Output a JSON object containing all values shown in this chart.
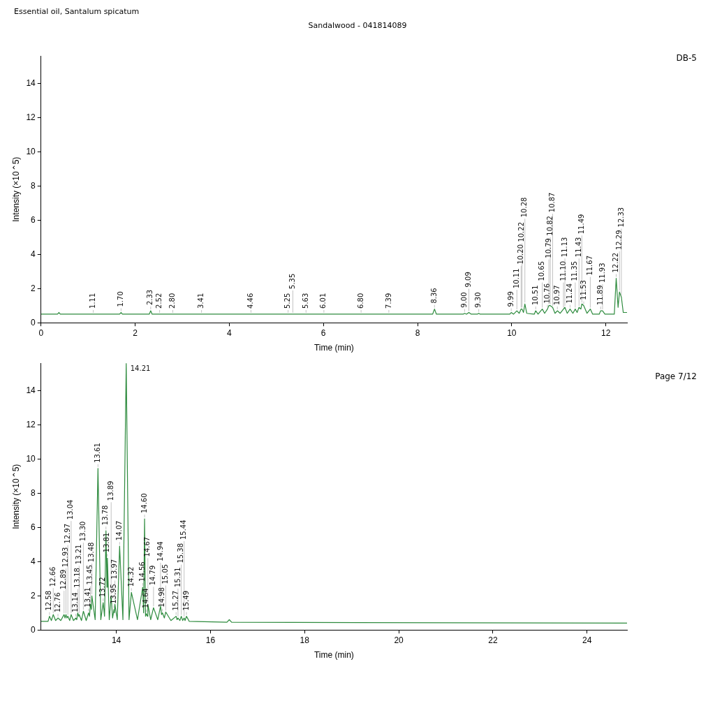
{
  "chart_data": [
    {
      "type": "line",
      "title": "Essential oil, Santalum spicatum",
      "subtitle": "Sandalwood - 041814089",
      "xlabel": "Time (min)",
      "ylabel": "Intensity (×10⌃5)",
      "xlim": [
        0,
        12.45
      ],
      "xticks": [
        0,
        2,
        4,
        6,
        8,
        10,
        12
      ],
      "ylim": [
        0,
        15.6
      ],
      "yticks": [
        0,
        2,
        4,
        6,
        8,
        10,
        12,
        14
      ],
      "grid": false,
      "legend": false,
      "marker": "none",
      "line_style": "solid",
      "series": [
        {
          "color": "#2e8b3e",
          "x": [
            0,
            0.35,
            0.38,
            0.41,
            1.67,
            1.7,
            1.73,
            2.3,
            2.33,
            2.36,
            8.32,
            8.36,
            8.4,
            8.97,
            9.0,
            9.04,
            9.09,
            9.14,
            9.27,
            9.3,
            9.33,
            9.96,
            9.99,
            10.04,
            10.11,
            10.16,
            10.2,
            10.22,
            10.25,
            10.28,
            10.32,
            10.48,
            10.51,
            10.56,
            10.65,
            10.7,
            10.76,
            10.79,
            10.82,
            10.87,
            10.92,
            10.97,
            11.03,
            11.1,
            11.13,
            11.18,
            11.24,
            11.3,
            11.35,
            11.39,
            11.43,
            11.47,
            11.49,
            11.53,
            11.6,
            11.67,
            11.72,
            11.86,
            11.89,
            11.93,
            11.98,
            12.18,
            12.22,
            12.26,
            12.29,
            12.33,
            12.37,
            12.45
          ],
          "values": [
            0.5,
            0.5,
            0.6,
            0.5,
            0.5,
            0.6,
            0.5,
            0.5,
            0.7,
            0.5,
            0.5,
            0.8,
            0.5,
            0.5,
            0.55,
            0.5,
            0.6,
            0.5,
            0.5,
            0.55,
            0.5,
            0.5,
            0.6,
            0.5,
            0.7,
            0.55,
            0.8,
            0.8,
            0.6,
            1.1,
            0.55,
            0.5,
            0.7,
            0.5,
            0.8,
            0.55,
            0.8,
            1.0,
            1.0,
            0.9,
            0.55,
            0.7,
            0.55,
            0.8,
            0.9,
            0.55,
            0.8,
            0.55,
            0.8,
            0.6,
            0.9,
            0.8,
            1.1,
            1.0,
            0.55,
            0.8,
            0.5,
            0.5,
            0.7,
            0.7,
            0.5,
            0.5,
            2.6,
            0.9,
            1.8,
            1.5,
            0.6,
            0.6
          ]
        }
      ],
      "annotations": [
        "DB-5",
        {
          "text": "1.11",
          "x": 1.11,
          "y": 0.5
        },
        {
          "text": "1.70",
          "x": 1.7,
          "y": 0.6
        },
        {
          "text": "2.33",
          "x": 2.33,
          "y": 0.7
        },
        {
          "text": "2.52",
          "x": 2.52,
          "y": 0.5
        },
        {
          "text": "2.80",
          "x": 2.8,
          "y": 0.5
        },
        {
          "text": "3.41",
          "x": 3.41,
          "y": 0.5
        },
        {
          "text": "4.46",
          "x": 4.46,
          "y": 0.5
        },
        {
          "text": "5.25",
          "x": 5.25,
          "y": 0.5
        },
        {
          "text": "5.35",
          "x": 5.35,
          "y": 0.5
        },
        {
          "text": "5.63",
          "x": 5.63,
          "y": 0.5
        },
        {
          "text": "6.01",
          "x": 6.01,
          "y": 0.5
        },
        {
          "text": "6.80",
          "x": 6.8,
          "y": 0.5
        },
        {
          "text": "7.39",
          "x": 7.39,
          "y": 0.5
        },
        {
          "text": "8.36",
          "x": 8.36,
          "y": 0.8
        },
        {
          "text": "9.00",
          "x": 9.0,
          "y": 0.55
        },
        {
          "text": "9.09",
          "x": 9.09,
          "y": 0.6
        },
        {
          "text": "9.30",
          "x": 9.3,
          "y": 0.55
        },
        {
          "text": "9.99",
          "x": 9.99,
          "y": 0.6
        },
        {
          "text": "10.11",
          "x": 10.11,
          "y": 0.7
        },
        {
          "text": "10.20",
          "x": 10.2,
          "y": 0.8
        },
        {
          "text": "10.22",
          "x": 10.22,
          "y": 0.8
        },
        {
          "text": "10.28",
          "x": 10.28,
          "y": 1.1
        },
        {
          "text": "10.51",
          "x": 10.51,
          "y": 0.7
        },
        {
          "text": "10.65",
          "x": 10.65,
          "y": 0.8
        },
        {
          "text": "10.76",
          "x": 10.76,
          "y": 0.8
        },
        {
          "text": "10.79",
          "x": 10.79,
          "y": 1.0
        },
        {
          "text": "10.82",
          "x": 10.82,
          "y": 1.0
        },
        {
          "text": "10.87",
          "x": 10.87,
          "y": 0.9
        },
        {
          "text": "10.97",
          "x": 10.97,
          "y": 0.7
        },
        {
          "text": "11.10",
          "x": 11.1,
          "y": 0.8
        },
        {
          "text": "11.13",
          "x": 11.13,
          "y": 0.9
        },
        {
          "text": "11.24",
          "x": 11.24,
          "y": 0.8
        },
        {
          "text": "11.35",
          "x": 11.35,
          "y": 0.8
        },
        {
          "text": "11.43",
          "x": 11.43,
          "y": 0.9
        },
        {
          "text": "11.49",
          "x": 11.49,
          "y": 1.1
        },
        {
          "text": "11.53",
          "x": 11.53,
          "y": 1.0
        },
        {
          "text": "11.67",
          "x": 11.67,
          "y": 0.8
        },
        {
          "text": "11.89",
          "x": 11.89,
          "y": 0.7
        },
        {
          "text": "11.93",
          "x": 11.93,
          "y": 0.7
        },
        {
          "text": "12.22",
          "x": 12.22,
          "y": 2.6
        },
        {
          "text": "12.29",
          "x": 12.29,
          "y": 1.8
        },
        {
          "text": "12.33",
          "x": 12.33,
          "y": 1.5
        }
      ]
    },
    {
      "type": "line",
      "xlabel": "Time (min)",
      "ylabel": "Intensity (×10⌃5)",
      "xlim": [
        12.4,
        24.85
      ],
      "xticks": [
        14,
        16,
        18,
        20,
        22,
        24
      ],
      "ylim": [
        0,
        15.6
      ],
      "yticks": [
        0,
        2,
        4,
        6,
        8,
        10,
        12,
        14
      ],
      "grid": false,
      "legend": false,
      "marker": "none",
      "line_style": "solid",
      "series": [
        {
          "color": "#2e8b3e",
          "x": [
            12.4,
            12.55,
            12.58,
            12.62,
            12.66,
            12.71,
            12.76,
            12.82,
            12.89,
            12.91,
            12.93,
            12.95,
            12.97,
            13.01,
            13.04,
            13.09,
            13.14,
            13.16,
            13.18,
            13.2,
            13.21,
            13.26,
            13.3,
            13.36,
            13.41,
            13.43,
            13.45,
            13.47,
            13.48,
            13.55,
            13.61,
            13.67,
            13.72,
            13.75,
            13.78,
            13.8,
            13.81,
            13.85,
            13.89,
            13.92,
            13.95,
            13.96,
            13.97,
            14.02,
            14.07,
            14.14,
            14.21,
            14.27,
            14.32,
            14.45,
            14.56,
            14.58,
            14.6,
            14.62,
            14.64,
            14.66,
            14.67,
            14.73,
            14.79,
            14.88,
            14.94,
            14.96,
            14.98,
            15.02,
            15.05,
            15.16,
            15.27,
            15.29,
            15.31,
            15.35,
            15.38,
            15.41,
            15.44,
            15.46,
            15.49,
            15.55,
            16.35,
            16.4,
            16.45,
            24.85
          ],
          "values": [
            0.5,
            0.5,
            0.8,
            0.55,
            0.9,
            0.55,
            0.7,
            0.55,
            0.9,
            0.7,
            0.9,
            0.7,
            0.8,
            0.55,
            0.9,
            0.55,
            0.7,
            0.6,
            1.0,
            0.8,
            0.9,
            0.55,
            1.1,
            0.55,
            1.0,
            0.8,
            1.5,
            1.2,
            2.0,
            0.6,
            9.45,
            0.6,
            1.6,
            0.8,
            5.8,
            2.5,
            4.2,
            0.6,
            2.0,
            0.7,
            1.2,
            1.0,
            1.5,
            0.6,
            4.9,
            0.6,
            15.6,
            0.6,
            2.2,
            0.6,
            2.5,
            1.0,
            6.5,
            0.8,
            0.95,
            0.8,
            1.5,
            0.6,
            1.3,
            0.6,
            1.4,
            0.9,
            1.0,
            0.7,
            1.05,
            0.55,
            0.8,
            0.6,
            0.7,
            0.55,
            0.8,
            0.55,
            0.7,
            0.55,
            0.8,
            0.5,
            0.45,
            0.6,
            0.45,
            0.4
          ]
        }
      ],
      "annotations": [
        "Page 7/12",
        {
          "text": "12.58",
          "x": 12.58,
          "y": 0.8
        },
        {
          "text": "12.66",
          "x": 12.66,
          "y": 0.9
        },
        {
          "text": "12.76",
          "x": 12.76,
          "y": 0.7
        },
        {
          "text": "12.89",
          "x": 12.89,
          "y": 0.9
        },
        {
          "text": "12.93",
          "x": 12.93,
          "y": 0.9
        },
        {
          "text": "12.97",
          "x": 12.97,
          "y": 0.8
        },
        {
          "text": "13.04",
          "x": 13.04,
          "y": 0.9
        },
        {
          "text": "13.14",
          "x": 13.14,
          "y": 0.7
        },
        {
          "text": "13.18",
          "x": 13.18,
          "y": 1.0
        },
        {
          "text": "13.21",
          "x": 13.21,
          "y": 0.9
        },
        {
          "text": "13.30",
          "x": 13.3,
          "y": 1.1
        },
        {
          "text": "13.41",
          "x": 13.41,
          "y": 1.0
        },
        {
          "text": "13.45",
          "x": 13.45,
          "y": 1.5
        },
        {
          "text": "13.48",
          "x": 13.48,
          "y": 2.0
        },
        {
          "text": "13.61",
          "x": 13.61,
          "y": 9.45
        },
        {
          "text": "13.72",
          "x": 13.72,
          "y": 1.6
        },
        {
          "text": "13.78",
          "x": 13.78,
          "y": 5.8
        },
        {
          "text": "13.81",
          "x": 13.81,
          "y": 4.2
        },
        {
          "text": "13.89",
          "x": 13.89,
          "y": 2.0
        },
        {
          "text": "13.95",
          "x": 13.95,
          "y": 1.2
        },
        {
          "text": "13.97",
          "x": 13.97,
          "y": 1.5
        },
        {
          "text": "14.07",
          "x": 14.07,
          "y": 4.9
        },
        {
          "text": "14.21",
          "x": 14.21,
          "y": 15.6
        },
        {
          "text": "14.32",
          "x": 14.32,
          "y": 2.2
        },
        {
          "text": "14.56",
          "x": 14.56,
          "y": 2.5
        },
        {
          "text": "14.60",
          "x": 14.6,
          "y": 6.5
        },
        {
          "text": "14.64",
          "x": 14.64,
          "y": 0.95
        },
        {
          "text": "14.67",
          "x": 14.67,
          "y": 1.5
        },
        {
          "text": "14.79",
          "x": 14.79,
          "y": 1.3
        },
        {
          "text": "14.94",
          "x": 14.94,
          "y": 1.4
        },
        {
          "text": "14.98",
          "x": 14.98,
          "y": 1.0
        },
        {
          "text": "15.05",
          "x": 15.05,
          "y": 1.05
        },
        {
          "text": "15.27",
          "x": 15.27,
          "y": 0.8
        },
        {
          "text": "15.31",
          "x": 15.31,
          "y": 0.7
        },
        {
          "text": "15.38",
          "x": 15.38,
          "y": 0.8
        },
        {
          "text": "15.44",
          "x": 15.44,
          "y": 0.7
        },
        {
          "text": "15.49",
          "x": 15.49,
          "y": 0.8
        }
      ]
    }
  ]
}
